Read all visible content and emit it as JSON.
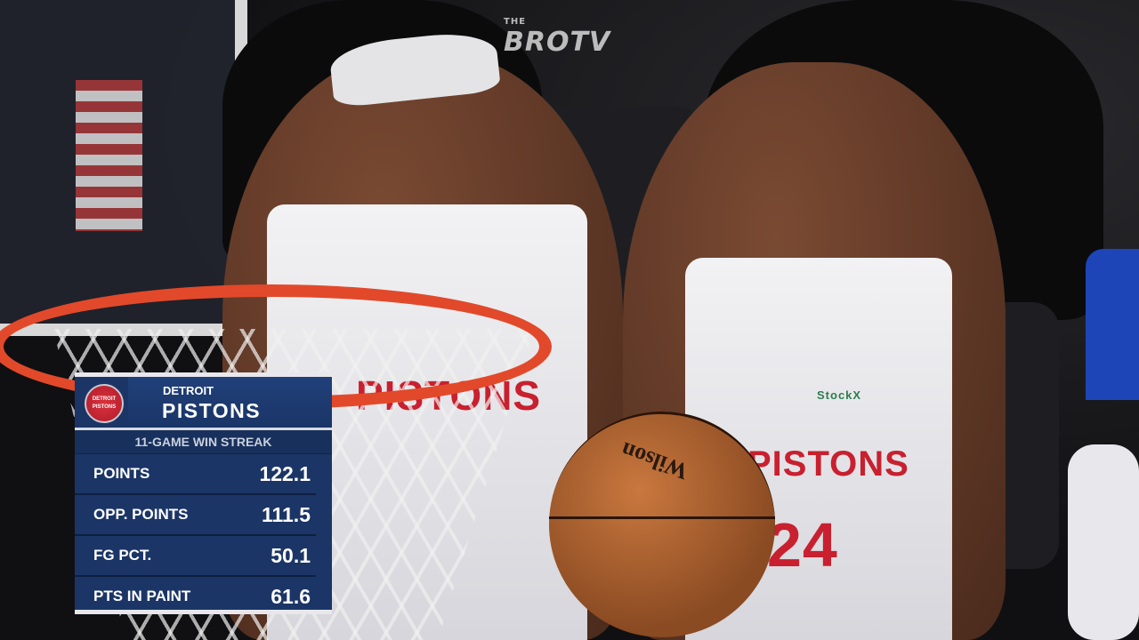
{
  "watermark": {
    "line1": "THE",
    "line2": "BROTV"
  },
  "jersey": {
    "left_text": "PISTONS",
    "right_text": "PISTONS",
    "number": "24",
    "sponsor": "StockX"
  },
  "ball_brand": "Wilson",
  "logo_text": "DETROIT PISTONS",
  "stats_card": {
    "team_city": "DETROIT",
    "team_name": "PISTONS",
    "subtitle": "11-GAME WIN STREAK",
    "rows": [
      {
        "label": "POINTS",
        "value": "122.1"
      },
      {
        "label": "OPP. POINTS",
        "value": "111.5"
      },
      {
        "label": "FG PCT.",
        "value": "50.1"
      },
      {
        "label": "PTS IN PAINT",
        "value": "61.6"
      }
    ],
    "colors": {
      "background": "#1b3566",
      "border": "#e8e8ec",
      "logo": "#c8202f"
    }
  }
}
